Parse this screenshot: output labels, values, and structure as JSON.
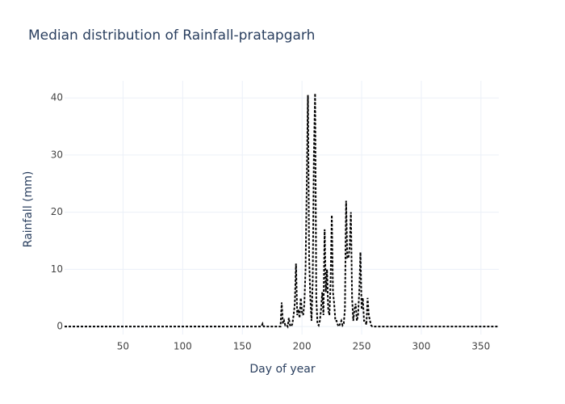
{
  "chart_data": {
    "type": "line",
    "title": "Median distribution of Rainfall-pratapgarh",
    "x_label": "Day of year",
    "y_label": "Rainfall (mm)",
    "xlim": [
      1,
      365
    ],
    "ylim": [
      -1.4,
      43
    ],
    "xticks": [
      50,
      100,
      150,
      200,
      250,
      300,
      350
    ],
    "yticks": [
      0,
      10,
      20,
      30,
      40
    ],
    "grid": true,
    "series": [
      {
        "color": "#000000",
        "x": [
          1,
          165,
          166,
          167,
          168,
          182,
          183,
          184,
          185,
          186,
          187,
          188,
          189,
          190,
          191,
          192,
          193,
          194,
          195,
          196,
          197,
          198,
          199,
          200,
          201,
          202,
          203,
          204,
          205,
          206,
          207,
          208,
          209,
          210,
          211,
          212,
          213,
          214,
          215,
          216,
          217,
          218,
          219,
          220,
          221,
          222,
          223,
          224,
          225,
          226,
          227,
          228,
          229,
          230,
          231,
          232,
          233,
          234,
          235,
          236,
          237,
          238,
          239,
          240,
          241,
          242,
          243,
          244,
          245,
          246,
          247,
          248,
          249,
          250,
          251,
          252,
          253,
          254,
          255,
          256,
          257,
          258,
          259,
          365
        ],
        "values": [
          0,
          0,
          0,
          0.5,
          0,
          0,
          4.2,
          0.5,
          1,
          0.2,
          0.3,
          0,
          1.5,
          0.2,
          0,
          0.5,
          2,
          4,
          11,
          2,
          3,
          1.5,
          5,
          2.5,
          2,
          4,
          10,
          25,
          40.5,
          12,
          5,
          1,
          8,
          30,
          40.8,
          5,
          0.5,
          0.2,
          1,
          3,
          6,
          2,
          17,
          6,
          10,
          3,
          2,
          8,
          19.5,
          6,
          4,
          1,
          1,
          0.3,
          0,
          0.5,
          1,
          0.2,
          0.5,
          3,
          22,
          12,
          12,
          14,
          20,
          5,
          1,
          3,
          4,
          1,
          2,
          6,
          13,
          3,
          5,
          1,
          1,
          0.3,
          5,
          2,
          1,
          0.2,
          0,
          0
        ]
      }
    ]
  }
}
